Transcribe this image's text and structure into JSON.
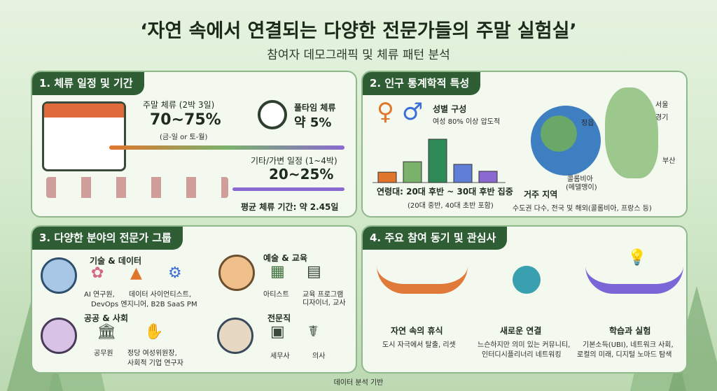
{
  "header": {
    "title": "‘자연 속에서 연결되는 다양한 전문가들의 주말 실험실’",
    "subtitle": "참여자 데모그래픽 및 체류 패턴 분석"
  },
  "panel1": {
    "title": "1. 체류 일정 및 기간",
    "weekend_label": "주말 체류 (2박 3일)",
    "weekend_value": "70~75%",
    "weekend_note": "(금-일 or 토-월)",
    "fulltime_label": "풀타임 체류",
    "fulltime_value": "약 5%",
    "other_label": "기타/가변 일정 (1~4박)",
    "other_value": "20~25%",
    "avg": "평균 체류 기간: 약 2.45일"
  },
  "panel2": {
    "title": "2. 인구 통계학적 특성",
    "gender_label": "성별 구성",
    "gender_value": "여성 80% 이상 압도적",
    "age_label": "연령대: 20대 후반 ~ 30대 후반 집중",
    "age_note": "(20대 중반, 40대 초반 포함)",
    "region_label": "거주 지역",
    "region_value": "수도권 다수, 전국 및 해외(콜롬비아, 프랑스 등)",
    "map_labels": {
      "seoul": "서울",
      "gyeonggi": "경기",
      "jeongeup": "정읍",
      "busan": "부산",
      "colombia": "콜롬비아",
      "medellin": "(메델맹이)"
    }
  },
  "panel3": {
    "title": "3. 다양한 분야의 전문가 그룹",
    "tech_label": "기술 & 데이터",
    "tech_a": "AI 연구원,",
    "tech_b": "데이터 사이언티스트,",
    "tech_c": "DevOps 엔지니어, B2B SaaS PM",
    "art_label": "예술 & 교육",
    "art_a": "아티스트",
    "art_b": "교육 프로그램",
    "art_c": "디자이너, 교사",
    "public_label": "공공 & 사회",
    "public_a": "공무원",
    "public_b": "정당 여성위원장,",
    "public_c": "사회적 기업 연구자",
    "pro_label": "전문직",
    "pro_a": "세무사",
    "pro_b": "의사"
  },
  "panel4": {
    "title": "4. 주요 참여 동기 및 관심사",
    "rest_label": "자연 속의 휴식",
    "rest_desc": "도시 자극에서 탈출, 리셋",
    "conn_label": "새로운 연결",
    "conn_desc_a": "느슨하지만 의미 있는 커뮤니티,",
    "conn_desc_b": "인터디시플리너리 네트워킹",
    "learn_label": "학습과 실험",
    "learn_desc_a": "기본소득(UBI), 네트워크 사회,",
    "learn_desc_b": "로컬의 미래, 디지털 노마드 탐색"
  },
  "footer": "데이터 분석 기반",
  "chart_data": {
    "type": "bar",
    "categories": [
      "",
      "",
      "",
      "",
      ""
    ],
    "values": [
      1.2,
      2.4,
      5,
      2.1,
      1.3
    ]
  },
  "colors": {
    "panel_title_bg": "#2f5e34",
    "bar_colors": [
      "#e0762c",
      "#7bb26b",
      "#2e8b57",
      "#5f7fd6",
      "#8a6ad1"
    ]
  }
}
